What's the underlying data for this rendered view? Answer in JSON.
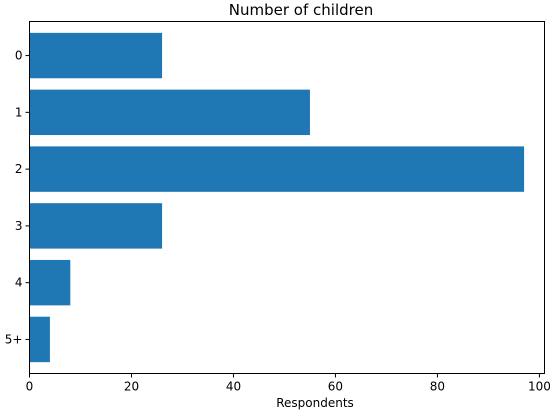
{
  "chart_data": {
    "type": "bar",
    "orientation": "horizontal",
    "title": "Number of children",
    "xlabel": "Respondents",
    "ylabel": "",
    "categories": [
      "0",
      "1",
      "2",
      "3",
      "4",
      "5+"
    ],
    "values": [
      26,
      55,
      97,
      26,
      8,
      4
    ],
    "xlim": [
      0,
      101
    ],
    "xticks": [
      0,
      20,
      40,
      60,
      80,
      100
    ],
    "grid": false,
    "legend": "none",
    "bar_color": "#1f77b4"
  }
}
